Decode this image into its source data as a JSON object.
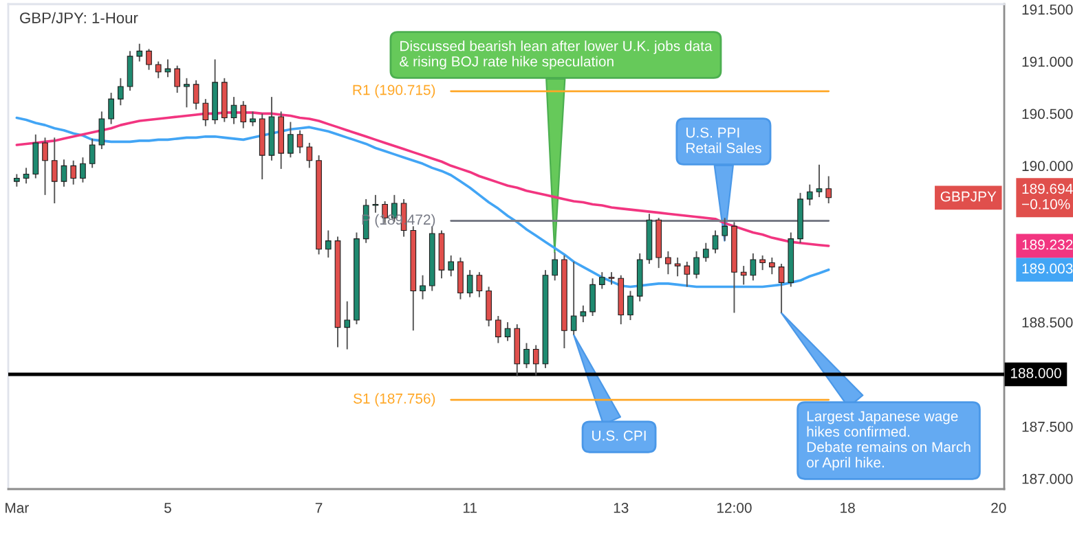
{
  "chart_data": {
    "type": "candlestick",
    "title": "GBP/JPY: 1-Hour",
    "categories": [
      "Mar",
      null,
      null,
      null,
      null,
      null,
      null,
      null,
      null,
      null,
      null,
      null,
      null,
      null,
      null,
      null,
      "5",
      null,
      null,
      null,
      null,
      null,
      null,
      null,
      null,
      null,
      null,
      null,
      null,
      null,
      null,
      null,
      "7",
      null,
      null,
      null,
      null,
      null,
      null,
      null,
      null,
      null,
      null,
      null,
      null,
      null,
      null,
      null,
      "11",
      null,
      null,
      null,
      null,
      null,
      null,
      null,
      null,
      null,
      null,
      null,
      null,
      null,
      null,
      null,
      "13",
      null,
      null,
      null,
      null,
      null,
      null,
      null,
      null,
      null,
      null,
      null,
      "12:00",
      null,
      null,
      null,
      null,
      null,
      null,
      null,
      null,
      null,
      null,
      null,
      "18",
      null,
      null,
      null,
      null,
      null,
      null,
      null,
      null,
      null,
      null,
      null,
      null,
      null,
      null,
      null,
      "20"
    ],
    "ylim": [
      186.9,
      191.55
    ],
    "yticks": [
      {
        "value": 187,
        "label": "187.000"
      },
      {
        "value": 187.5,
        "label": "187.500"
      },
      {
        "value": 188.5,
        "label": "188.500"
      },
      {
        "value": 189.003,
        "label": "189.003"
      },
      {
        "value": 189.232,
        "label": "189.232"
      },
      {
        "value": 189.694,
        "label": "189.694\n−0.10%"
      },
      {
        "value": 190,
        "label": "190.000"
      },
      {
        "value": 190.5,
        "label": "190.500"
      },
      {
        "value": 191,
        "label": "191.000"
      },
      {
        "value": 191.5,
        "label": "191.500"
      }
    ],
    "ref_lines": [
      {
        "axis": "y",
        "value": 188.0,
        "label": "188.000",
        "color": "#000000"
      }
    ],
    "annotations": [
      "Discussed bearish lean after lower U.K. jobs data\n& rising BOJ rate hike speculation",
      "U.S. PPI\nRetail Sales",
      "U.S. CPI",
      "Largest Japanese wage\nhikes confirmed.\nDebate remains on March\nor April hike."
    ],
    "series": [
      {
        "type": "line",
        "color": "#42a5f5",
        "values": [
          190.46,
          190.44,
          190.41,
          190.39,
          190.36,
          190.34,
          190.31,
          190.29,
          190.25,
          190.24,
          190.23,
          190.23,
          190.23,
          190.24,
          190.24,
          190.25,
          190.25,
          190.26,
          190.27,
          190.27,
          190.28,
          190.28,
          190.27,
          190.26,
          190.25,
          190.27,
          190.29,
          190.31,
          190.33,
          190.35,
          190.36,
          190.37,
          190.35,
          190.33,
          190.3,
          190.27,
          190.24,
          190.21,
          190.17,
          190.14,
          190.11,
          190.08,
          190.05,
          190.02,
          189.98,
          189.95,
          189.91,
          189.85,
          189.79,
          189.72,
          189.65,
          189.59,
          189.52,
          189.46,
          189.39,
          189.33,
          189.27,
          189.21,
          189.15,
          189.08,
          189.03,
          188.98,
          188.93,
          188.89,
          188.85,
          188.84,
          188.85,
          188.86,
          188.87,
          188.87,
          188.86,
          188.85,
          188.84,
          188.84,
          188.84,
          188.84,
          188.84,
          188.84,
          188.84,
          188.84,
          188.85,
          188.86,
          188.88,
          188.9,
          188.94,
          188.97,
          189.003,
          null,
          null,
          null,
          null,
          null,
          null,
          null,
          null,
          null,
          null,
          null,
          null,
          null,
          null,
          null,
          null,
          null,
          null
        ]
      },
      {
        "type": "line",
        "color": "#f23580",
        "values": [
          190.2,
          190.21,
          190.22,
          190.23,
          190.24,
          190.26,
          190.28,
          190.3,
          190.32,
          190.34,
          190.36,
          190.39,
          190.41,
          190.43,
          190.44,
          190.45,
          190.46,
          190.47,
          190.48,
          190.49,
          190.5,
          190.5,
          190.51,
          190.51,
          190.51,
          190.51,
          190.5,
          190.5,
          190.49,
          190.48,
          190.46,
          190.45,
          190.43,
          190.4,
          190.37,
          190.34,
          190.31,
          190.28,
          190.25,
          190.22,
          190.19,
          190.16,
          190.13,
          190.1,
          190.07,
          190.04,
          190.0,
          189.97,
          189.94,
          189.9,
          189.87,
          189.84,
          189.81,
          189.79,
          189.76,
          189.74,
          189.72,
          189.7,
          189.68,
          189.66,
          189.65,
          189.63,
          189.62,
          189.6,
          189.59,
          189.58,
          189.57,
          189.56,
          189.55,
          189.54,
          189.53,
          189.52,
          189.51,
          189.5,
          189.49,
          189.45,
          189.42,
          189.39,
          189.36,
          189.34,
          189.31,
          189.29,
          189.27,
          189.26,
          189.25,
          189.24,
          189.232,
          null,
          null,
          null,
          null,
          null,
          null,
          null,
          null,
          null,
          null,
          null,
          null,
          null,
          null,
          null,
          null,
          null,
          null
        ]
      },
      {
        "type": "line",
        "name": "R1 (190.715)",
        "color": "#ffa726",
        "values": [
          null,
          null,
          null,
          null,
          null,
          null,
          null,
          null,
          null,
          null,
          null,
          null,
          null,
          null,
          null,
          null,
          null,
          null,
          null,
          null,
          null,
          null,
          null,
          null,
          null,
          null,
          null,
          null,
          null,
          null,
          null,
          null,
          null,
          null,
          null,
          null,
          null,
          null,
          null,
          null,
          null,
          null,
          null,
          null,
          null,
          null,
          190.715,
          190.715,
          190.715,
          190.715,
          190.715,
          190.715,
          190.715,
          190.715,
          190.715,
          190.715,
          190.715,
          190.715,
          190.715,
          190.715,
          190.715,
          190.715,
          190.715,
          190.715,
          190.715,
          190.715,
          190.715,
          190.715,
          190.715,
          190.715,
          190.715,
          190.715,
          190.715,
          190.715,
          190.715,
          190.715,
          190.715,
          190.715,
          190.715,
          190.715,
          190.715,
          190.715,
          190.715,
          190.715,
          190.715,
          190.715,
          190.715,
          null,
          null,
          null,
          null,
          null,
          null,
          null,
          null,
          null,
          null,
          null,
          null,
          null,
          null,
          null,
          null,
          null,
          null
        ]
      },
      {
        "type": "line",
        "name": "P (189.472)",
        "color": "#787b86",
        "values": [
          null,
          null,
          null,
          null,
          null,
          null,
          null,
          null,
          null,
          null,
          null,
          null,
          null,
          null,
          null,
          null,
          null,
          null,
          null,
          null,
          null,
          null,
          null,
          null,
          null,
          null,
          null,
          null,
          null,
          null,
          null,
          null,
          null,
          null,
          null,
          null,
          null,
          null,
          null,
          null,
          null,
          null,
          null,
          null,
          null,
          null,
          189.472,
          189.472,
          189.472,
          189.472,
          189.472,
          189.472,
          189.472,
          189.472,
          189.472,
          189.472,
          189.472,
          189.472,
          189.472,
          189.472,
          189.472,
          189.472,
          189.472,
          189.472,
          189.472,
          189.472,
          189.472,
          189.472,
          189.472,
          189.472,
          189.472,
          189.472,
          189.472,
          189.472,
          189.472,
          189.472,
          189.472,
          189.472,
          189.472,
          189.472,
          189.472,
          189.472,
          189.472,
          189.472,
          189.472,
          189.472,
          189.472,
          null,
          null,
          null,
          null,
          null,
          null,
          null,
          null,
          null,
          null,
          null,
          null,
          null,
          null,
          null,
          null,
          null,
          null
        ]
      },
      {
        "type": "line",
        "name": "S1 (187.756)",
        "color": "#ffa726",
        "values": [
          null,
          null,
          null,
          null,
          null,
          null,
          null,
          null,
          null,
          null,
          null,
          null,
          null,
          null,
          null,
          null,
          null,
          null,
          null,
          null,
          null,
          null,
          null,
          null,
          null,
          null,
          null,
          null,
          null,
          null,
          null,
          null,
          null,
          null,
          null,
          null,
          null,
          null,
          null,
          null,
          null,
          null,
          null,
          null,
          null,
          null,
          187.756,
          187.756,
          187.756,
          187.756,
          187.756,
          187.756,
          187.756,
          187.756,
          187.756,
          187.756,
          187.756,
          187.756,
          187.756,
          187.756,
          187.756,
          187.756,
          187.756,
          187.756,
          187.756,
          187.756,
          187.756,
          187.756,
          187.756,
          187.756,
          187.756,
          187.756,
          187.756,
          187.756,
          187.756,
          187.756,
          187.756,
          187.756,
          187.756,
          187.756,
          187.756,
          187.756,
          187.756,
          187.756,
          187.756,
          187.756,
          187.756,
          null,
          null,
          null,
          null,
          null,
          null,
          null,
          null,
          null,
          null,
          null,
          null,
          null,
          null,
          null,
          null,
          null,
          null
        ]
      },
      {
        "name": "GBPJPY",
        "ohlc": [
          [
            189.85,
            189.92,
            189.8,
            189.88
          ],
          [
            189.88,
            189.98,
            189.83,
            189.92
          ],
          [
            189.92,
            190.3,
            189.88,
            190.22
          ],
          [
            190.22,
            190.27,
            189.72,
            190.05
          ],
          [
            190.05,
            190.27,
            189.64,
            189.85
          ],
          [
            189.85,
            190.06,
            189.8,
            190.0
          ],
          [
            190.0,
            190.05,
            189.82,
            189.88
          ],
          [
            189.88,
            190.08,
            189.84,
            190.02
          ],
          [
            190.02,
            190.26,
            189.98,
            190.2
          ],
          [
            190.2,
            190.52,
            190.16,
            190.45
          ],
          [
            190.45,
            190.7,
            190.4,
            190.64
          ],
          [
            190.64,
            190.84,
            190.58,
            190.76
          ],
          [
            190.76,
            191.1,
            190.72,
            191.05
          ],
          [
            191.05,
            191.17,
            191.0,
            191.1
          ],
          [
            191.1,
            191.12,
            190.92,
            190.97
          ],
          [
            190.97,
            191.0,
            190.84,
            190.9
          ],
          [
            190.9,
            191.02,
            190.85,
            190.93
          ],
          [
            190.93,
            190.96,
            190.7,
            190.76
          ],
          [
            190.76,
            190.84,
            190.56,
            190.78
          ],
          [
            190.78,
            190.82,
            190.54,
            190.6
          ],
          [
            190.6,
            190.64,
            190.38,
            190.44
          ],
          [
            190.44,
            191.02,
            190.4,
            190.8
          ],
          [
            190.8,
            190.84,
            190.42,
            190.46
          ],
          [
            190.46,
            190.66,
            190.4,
            190.58
          ],
          [
            190.58,
            190.62,
            190.36,
            190.42
          ],
          [
            190.42,
            190.52,
            190.38,
            190.45
          ],
          [
            190.45,
            190.5,
            189.87,
            190.1
          ],
          [
            190.1,
            190.66,
            190.05,
            190.47
          ],
          [
            190.47,
            190.52,
            189.97,
            190.12
          ],
          [
            190.12,
            190.42,
            190.08,
            190.3
          ],
          [
            190.3,
            190.34,
            190.12,
            190.18
          ],
          [
            190.18,
            190.22,
            189.98,
            190.05
          ],
          [
            190.05,
            190.1,
            189.15,
            189.2
          ],
          [
            189.2,
            189.38,
            189.12,
            189.28
          ],
          [
            189.28,
            189.32,
            188.26,
            188.45
          ],
          [
            188.45,
            188.7,
            188.24,
            188.52
          ],
          [
            188.52,
            189.36,
            188.48,
            189.3
          ],
          [
            189.3,
            189.68,
            189.26,
            189.62
          ],
          [
            189.62,
            189.72,
            189.55,
            189.63
          ],
          [
            189.63,
            189.66,
            189.45,
            189.5
          ],
          [
            189.5,
            189.72,
            189.46,
            189.64
          ],
          [
            189.64,
            189.68,
            189.32,
            189.38
          ],
          [
            189.38,
            189.42,
            188.42,
            188.8
          ],
          [
            188.8,
            188.95,
            188.72,
            188.85
          ],
          [
            188.85,
            189.42,
            188.8,
            189.35
          ],
          [
            189.35,
            189.38,
            188.92,
            189.0
          ],
          [
            189.0,
            189.14,
            188.94,
            189.08
          ],
          [
            189.08,
            189.12,
            188.72,
            188.78
          ],
          [
            188.78,
            189.0,
            188.74,
            188.95
          ],
          [
            188.95,
            188.98,
            188.74,
            188.8
          ],
          [
            188.8,
            188.84,
            188.46,
            188.52
          ],
          [
            188.52,
            188.56,
            188.3,
            188.36
          ],
          [
            188.36,
            188.5,
            188.32,
            188.44
          ],
          [
            188.44,
            188.48,
            187.98,
            188.1
          ],
          [
            188.1,
            188.3,
            188.06,
            188.24
          ],
          [
            188.24,
            188.28,
            187.99,
            188.1
          ],
          [
            188.1,
            189.0,
            188.06,
            188.95
          ],
          [
            188.95,
            189.17,
            188.9,
            189.1
          ],
          [
            189.1,
            189.14,
            188.25,
            188.42
          ],
          [
            188.42,
            189.08,
            188.38,
            188.56
          ],
          [
            188.56,
            188.66,
            188.5,
            188.6
          ],
          [
            188.6,
            188.92,
            188.56,
            188.86
          ],
          [
            188.86,
            188.98,
            188.82,
            188.93
          ],
          [
            188.93,
            188.98,
            188.86,
            188.92
          ],
          [
            188.92,
            188.95,
            188.48,
            188.57
          ],
          [
            188.57,
            188.8,
            188.52,
            188.75
          ],
          [
            188.75,
            189.16,
            188.7,
            189.1
          ],
          [
            189.1,
            189.54,
            189.06,
            189.48
          ],
          [
            189.48,
            189.5,
            189.02,
            189.12
          ],
          [
            189.12,
            189.18,
            188.96,
            189.06
          ],
          [
            189.06,
            189.12,
            188.94,
            189.04
          ],
          [
            189.04,
            189.08,
            188.84,
            188.96
          ],
          [
            188.96,
            189.18,
            188.92,
            189.12
          ],
          [
            189.12,
            189.26,
            189.08,
            189.2
          ],
          [
            189.2,
            189.38,
            189.16,
            189.33
          ],
          [
            189.33,
            189.5,
            189.28,
            189.42
          ],
          [
            189.42,
            189.46,
            188.59,
            188.98
          ],
          [
            188.98,
            189.04,
            188.86,
            188.95
          ],
          [
            188.95,
            189.16,
            188.9,
            189.1
          ],
          [
            189.1,
            189.14,
            189.0,
            189.07
          ],
          [
            189.07,
            189.12,
            188.96,
            189.03
          ],
          [
            189.03,
            189.06,
            188.59,
            188.88
          ],
          [
            188.88,
            189.36,
            188.84,
            189.3
          ],
          [
            189.3,
            189.74,
            189.26,
            189.68
          ],
          [
            189.68,
            189.82,
            189.62,
            189.75
          ],
          [
            189.75,
            190.01,
            189.7,
            189.78
          ],
          [
            189.78,
            189.9,
            189.64,
            189.694
          ],
          null,
          null,
          null,
          null,
          null,
          null,
          null,
          null,
          null,
          null,
          null,
          null,
          null,
          null,
          null,
          null,
          null,
          null
        ]
      }
    ]
  }
}
